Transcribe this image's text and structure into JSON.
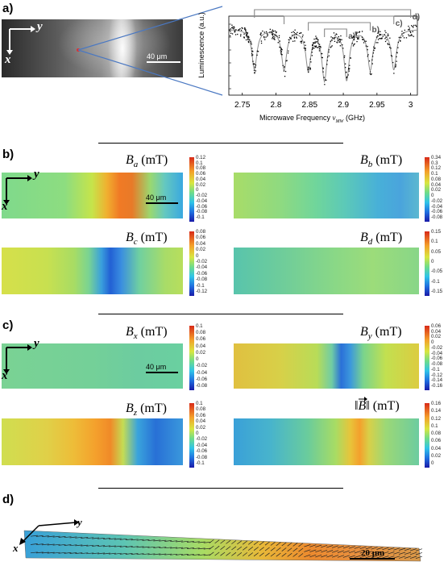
{
  "panel_labels": {
    "a": "a)",
    "b": "b)",
    "c": "c)",
    "d": "d)"
  },
  "axes": {
    "x": "x",
    "y": "y"
  },
  "micrograph": {
    "scale_text": "40 μm"
  },
  "spectrum": {
    "ylabel": "Luminescence (a.u.)",
    "xlabel_prefix": "Microwave Frequency ",
    "xlabel_var": "ν",
    "xlabel_sub": "MW",
    "xlabel_unit": " (GHz)",
    "xticks": [
      "2.75",
      "2.8",
      "2.85",
      "2.9",
      "2.95",
      "3"
    ],
    "bracket_labels": [
      "a)",
      "b)",
      "c)",
      "d)"
    ]
  },
  "chart_data": {
    "type": "scatter",
    "xlabel": "Microwave Frequency νMW (GHz)",
    "ylabel": "Luminescence (a.u.)",
    "xlim": [
      2.73,
      3.01
    ],
    "dip_centers_ghz": [
      2.768,
      2.812,
      2.848,
      2.872,
      2.905,
      2.94,
      2.975
    ],
    "dip_pairs": [
      {
        "name": "a)",
        "low": 2.872,
        "high": 2.905
      },
      {
        "name": "b)",
        "low": 2.848,
        "high": 2.94
      },
      {
        "name": "c)",
        "low": 2.812,
        "high": 2.975
      },
      {
        "name": "d)",
        "low": 2.768,
        "high": 3.0
      }
    ]
  },
  "field_maps": {
    "scale_text": "40 μm",
    "B_a": {
      "sym": "B",
      "sub": "a",
      "unit": " (mT)",
      "ticks": [
        "0.12",
        "0.1",
        "0.08",
        "0.06",
        "0.04",
        "0.02",
        "0",
        "-0.02",
        "-0.04",
        "-0.06",
        "-0.08",
        "-0.1"
      ]
    },
    "B_b": {
      "sym": "B",
      "sub": "b",
      "unit": " (mT)",
      "ticks": [
        "0.34",
        "0.3",
        "0.12",
        "0.1",
        "0.08",
        "0.04",
        "0.02",
        "0",
        "-0.02",
        "-0.04",
        "-0.06",
        "-0.08"
      ]
    },
    "B_c": {
      "sym": "B",
      "sub": "c",
      "unit": " (mT)",
      "ticks": [
        "0.08",
        "0.06",
        "0.04",
        "0.02",
        "0",
        "-0.02",
        "-0.04",
        "-0.06",
        "-0.08",
        "-0.1",
        "-0.12"
      ]
    },
    "B_d": {
      "sym": "B",
      "sub": "d",
      "unit": " (mT)",
      "ticks": [
        "0.15",
        "0.1",
        "0.05",
        "0",
        "-0.05",
        "-0.1",
        "-0.15"
      ]
    },
    "B_x": {
      "sym": "B",
      "sub": "x",
      "unit": " (mT)",
      "ticks": [
        "0.1",
        "0.08",
        "0.06",
        "0.04",
        "0.02",
        "0",
        "-0.02",
        "-0.04",
        "-0.06",
        "-0.08"
      ]
    },
    "B_y": {
      "sym": "B",
      "sub": "y",
      "unit": " (mT)",
      "ticks": [
        "0.06",
        "0.04",
        "0.02",
        "0",
        "-0.02",
        "-0.04",
        "-0.06",
        "-0.08",
        "-0.1",
        "-0.12",
        "-0.14",
        "-0.16"
      ]
    },
    "B_z": {
      "sym": "B",
      "sub": "z",
      "unit": " (mT)",
      "ticks": [
        "0.1",
        "0.08",
        "0.06",
        "0.04",
        "0.02",
        "0",
        "-0.02",
        "-0.04",
        "-0.06",
        "-0.08",
        "-0.1"
      ]
    },
    "B_norm": {
      "left": "‖",
      "sym": "B",
      "right": "‖",
      "unit": " (mT)",
      "ticks": [
        "0.16",
        "0.14",
        "0.12",
        "0.1",
        "0.08",
        "0.06",
        "0.04",
        "0.02",
        "0"
      ]
    }
  },
  "vector_map": {
    "scale_text": "20 μm"
  },
  "colors": {
    "accent_line": "#4a78c2",
    "bracket_gray": "#888888"
  }
}
